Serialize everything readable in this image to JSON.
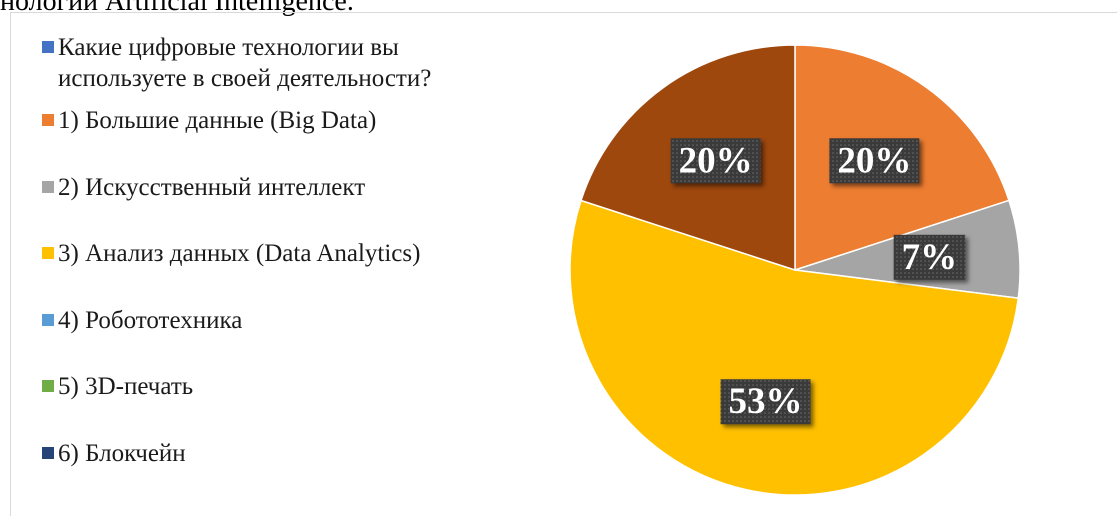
{
  "caption": "нологии Artificial Intelligence.",
  "chart_data": {
    "type": "pie",
    "categories": [
      "Какие цифровые технологии вы используете в своей деятельности?",
      "1) Большие данные (Big Data)",
      "2) Искусственный интеллект",
      "3) Анализ данных (Data Analytics)",
      "4) Робототехника",
      "5) 3D-печать",
      "6) Блокчейн",
      null
    ],
    "values": [
      0,
      20,
      7,
      53,
      0,
      0,
      0,
      20
    ],
    "value_labels": [
      null,
      "20%",
      "7%",
      "53%",
      null,
      null,
      null,
      "20%"
    ],
    "colors": [
      "#4472C4",
      "#ED7D31",
      "#A5A5A5",
      "#FFC000",
      "#5B9BD5",
      "#70AD47",
      "#264478",
      "#9E480E"
    ],
    "legend": "left"
  }
}
